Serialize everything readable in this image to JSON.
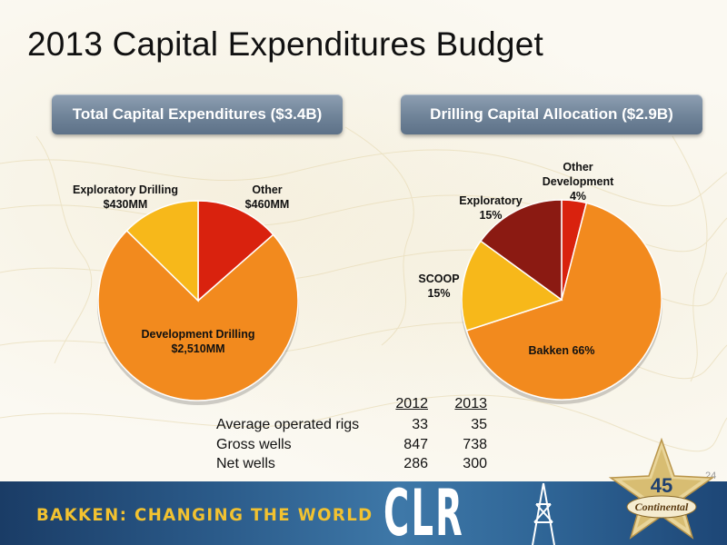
{
  "slide": {
    "title": "2013 Capital Expenditures Budget",
    "page_number": "24"
  },
  "pill_left": {
    "label": "Total Capital Expenditures ($3.4B)"
  },
  "pill_right": {
    "label": "Drilling Capital Allocation ($2.9B)"
  },
  "chart_data": [
    {
      "type": "pie",
      "title": "Total Capital Expenditures ($3.4B)",
      "slices": [
        {
          "label": "Other",
          "value_label": "$460MM",
          "value": 460,
          "color": "#d9220e"
        },
        {
          "label": "Development Drilling",
          "value_label": "$2,510MM",
          "value": 2510,
          "color": "#f28a1e"
        },
        {
          "label": "Exploratory Drilling",
          "value_label": "$430MM",
          "value": 430,
          "color": "#f7b81a"
        }
      ]
    },
    {
      "type": "pie",
      "title": "Drilling Capital Allocation ($2.9B)",
      "slices": [
        {
          "label": "Other Development",
          "value_label": "4%",
          "value": 4,
          "color": "#d9220e"
        },
        {
          "label": "Bakken",
          "value_label": "66%",
          "value": 66,
          "color": "#f28a1e"
        },
        {
          "label": "SCOOP",
          "value_label": "15%",
          "value": 15,
          "color": "#f7b81a"
        },
        {
          "label": "Exploratory",
          "value_label": "15%",
          "value": 15,
          "color": "#8b1a12"
        }
      ]
    }
  ],
  "stats_table": {
    "headers": [
      "2012",
      "2013"
    ],
    "rows": [
      {
        "label": "Average operated rigs",
        "y2012": "33",
        "y2013": "35"
      },
      {
        "label": "Gross wells",
        "y2012": "847",
        "y2013": "738"
      },
      {
        "label": "Net wells",
        "y2012": "286",
        "y2013": "300"
      }
    ]
  },
  "banner": {
    "tagline": "BAKKEN: CHANGING THE WORLD",
    "ticker": "CLR",
    "logo_text": "Continental"
  },
  "colors": {
    "pill": "#6f8398",
    "banner": "#2b5b8a",
    "tagline": "#f2c230"
  }
}
